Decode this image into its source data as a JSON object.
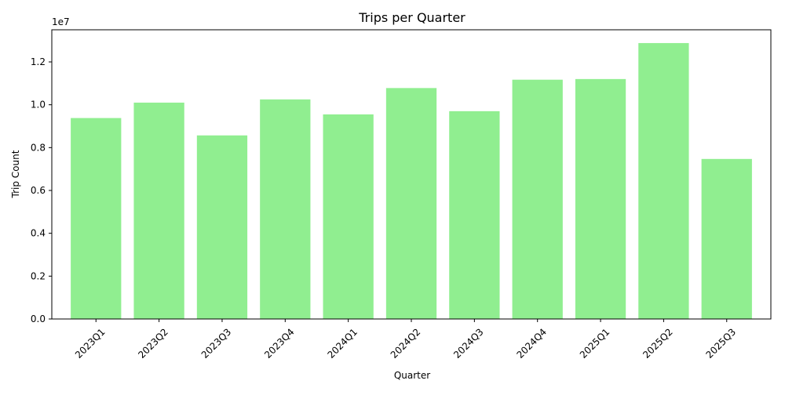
{
  "chart_data": {
    "type": "bar",
    "title": "Trips per Quarter",
    "xlabel": "Quarter",
    "ylabel": "Trip Count",
    "offset_text": "1e7",
    "categories": [
      "2023Q1",
      "2023Q2",
      "2023Q3",
      "2023Q4",
      "2024Q1",
      "2024Q2",
      "2024Q3",
      "2024Q4",
      "2025Q1",
      "2025Q2",
      "2025Q3"
    ],
    "values": [
      9380000,
      10100000,
      8570000,
      10250000,
      9550000,
      10780000,
      9700000,
      11170000,
      11200000,
      12880000,
      7470000
    ],
    "ylim": [
      0,
      13500000
    ],
    "yticks": [
      0,
      2000000,
      4000000,
      6000000,
      8000000,
      10000000,
      12000000
    ],
    "ytick_labels": [
      "0.0",
      "0.2",
      "0.4",
      "0.6",
      "0.8",
      "1.0",
      "1.2"
    ],
    "bar_color": "#90ee90",
    "grid": false,
    "legend": "none"
  }
}
